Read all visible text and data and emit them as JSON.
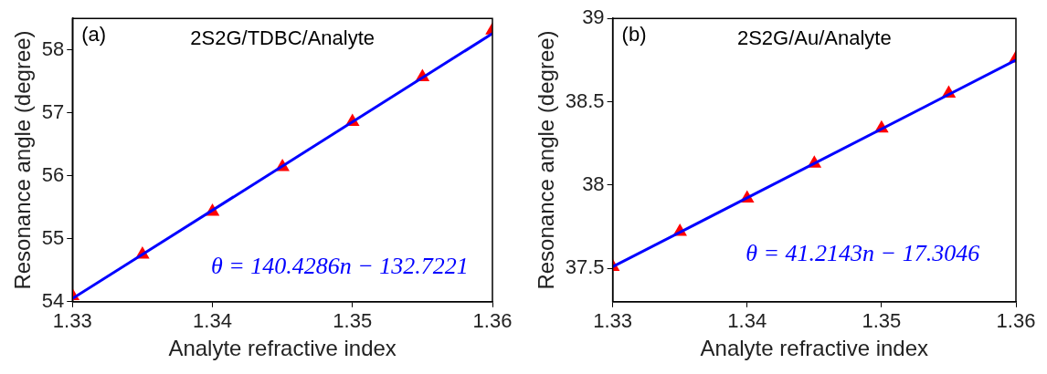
{
  "chart_data": [
    {
      "type": "scatter",
      "title": "2S2G/TDBC/Analyte",
      "annotations": [
        "(a)"
      ],
      "xlabel": "Analyte refractive index",
      "ylabel": "Resonance angle (degree)",
      "xlim": [
        1.33,
        1.36
      ],
      "xticks": [
        1.33,
        1.34,
        1.35,
        1.36
      ],
      "ylim": [
        54,
        58.5
      ],
      "yticks": [
        54,
        55,
        56,
        57,
        58
      ],
      "grid": false,
      "legend": false,
      "series": [
        {
          "marker": "triangle",
          "color": "#ff0000",
          "x": [
            1.33,
            1.335,
            1.34,
            1.345,
            1.35,
            1.355,
            1.36
          ],
          "values": [
            54.09,
            54.75,
            55.43,
            56.14,
            56.86,
            57.57,
            58.31
          ]
        },
        {
          "type": "line",
          "marker": "none",
          "line_style": "solid",
          "name": "θ = 140.4286n − 132.7221",
          "color": "#0000ff",
          "x": [
            1.33,
            1.36
          ],
          "values": [
            54.05,
            58.26
          ]
        }
      ]
    },
    {
      "type": "scatter",
      "title": "2S2G/Au/Analyte",
      "annotations": [
        "(b)"
      ],
      "xlabel": "Analyte refractive index",
      "ylabel": "Resonance angle (degree)",
      "xlim": [
        1.33,
        1.36
      ],
      "xticks": [
        1.33,
        1.34,
        1.35,
        1.36
      ],
      "ylim": [
        37.3,
        39
      ],
      "yticks": [
        37.5,
        38,
        38.5,
        39
      ],
      "grid": false,
      "legend": false,
      "series": [
        {
          "marker": "triangle",
          "color": "#ff0000",
          "x": [
            1.33,
            1.335,
            1.34,
            1.345,
            1.35,
            1.355,
            1.36
          ],
          "values": [
            37.51,
            37.72,
            37.92,
            38.13,
            38.34,
            38.55,
            38.76
          ]
        },
        {
          "type": "line",
          "marker": "none",
          "line_style": "solid",
          "name": "θ = 41.2143n − 17.3046",
          "color": "#0000ff",
          "x": [
            1.33,
            1.36
          ],
          "values": [
            37.51,
            38.75
          ]
        }
      ]
    }
  ]
}
